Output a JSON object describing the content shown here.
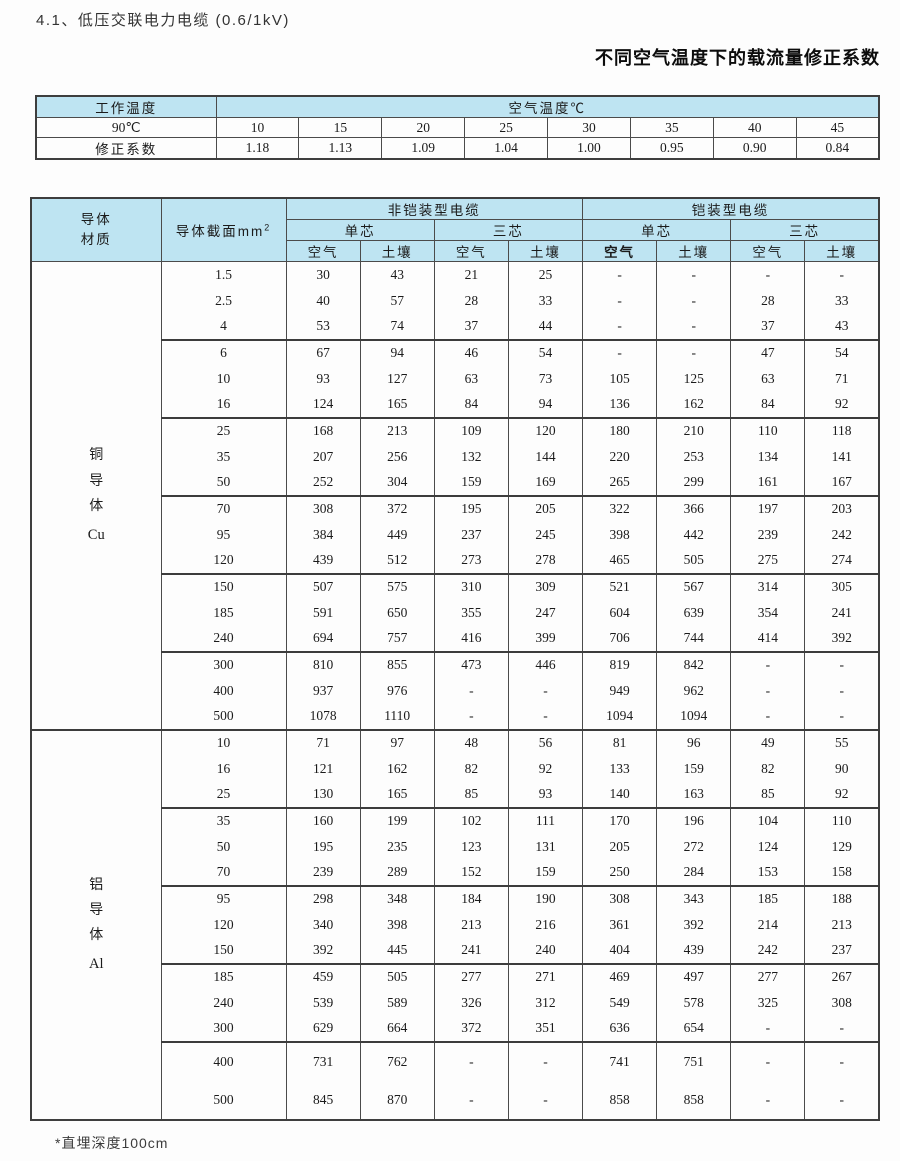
{
  "page": {
    "title": "4.1、低压交联电力电缆 (0.6/1kV)",
    "subtitle": "不同空气温度下的载流量修正系数",
    "footnote": "*直埋深度100cm"
  },
  "correction_table": {
    "col1_header": "工作温度",
    "span_header": "空气温度℃",
    "row1_label": "90℃",
    "temps": [
      "10",
      "15",
      "20",
      "25",
      "30",
      "35",
      "40",
      "45"
    ],
    "row2_label": "修正系数",
    "factors": [
      "1.18",
      "1.13",
      "1.09",
      "1.04",
      "1.00",
      "0.95",
      "0.90",
      "0.84"
    ]
  },
  "main_table": {
    "headers": {
      "material_line1": "导体",
      "material_line2": "材质",
      "cross_section": "导体截面mm",
      "cross_section_sup": "2",
      "non_armored": "非铠装型电缆",
      "armored": "铠装型电缆",
      "single_core": "单芯",
      "three_core": "三芯",
      "air": "空气",
      "soil": "土壤"
    },
    "sections": [
      {
        "material_lines": [
          "铜",
          "导",
          "体",
          "Cu"
        ],
        "groups": [
          {
            "sizes": [
              "1.5",
              "2.5",
              "4"
            ],
            "rows": [
              [
                "30",
                "43",
                "21",
                "25",
                "-",
                "-",
                "-",
                "-"
              ],
              [
                "40",
                "57",
                "28",
                "33",
                "-",
                "-",
                "28",
                "33"
              ],
              [
                "53",
                "74",
                "37",
                "44",
                "-",
                "-",
                "37",
                "43"
              ]
            ]
          },
          {
            "sizes": [
              "6",
              "10",
              "16"
            ],
            "rows": [
              [
                "67",
                "94",
                "46",
                "54",
                "-",
                "-",
                "47",
                "54"
              ],
              [
                "93",
                "127",
                "63",
                "73",
                "105",
                "125",
                "63",
                "71"
              ],
              [
                "124",
                "165",
                "84",
                "94",
                "136",
                "162",
                "84",
                "92"
              ]
            ]
          },
          {
            "sizes": [
              "25",
              "35",
              "50"
            ],
            "rows": [
              [
                "168",
                "213",
                "109",
                "120",
                "180",
                "210",
                "110",
                "118"
              ],
              [
                "207",
                "256",
                "132",
                "144",
                "220",
                "253",
                "134",
                "141"
              ],
              [
                "252",
                "304",
                "159",
                "169",
                "265",
                "299",
                "161",
                "167"
              ]
            ]
          },
          {
            "sizes": [
              "70",
              "95",
              "120"
            ],
            "rows": [
              [
                "308",
                "372",
                "195",
                "205",
                "322",
                "366",
                "197",
                "203"
              ],
              [
                "384",
                "449",
                "237",
                "245",
                "398",
                "442",
                "239",
                "242"
              ],
              [
                "439",
                "512",
                "273",
                "278",
                "465",
                "505",
                "275",
                "274"
              ]
            ]
          },
          {
            "sizes": [
              "150",
              "185",
              "240"
            ],
            "rows": [
              [
                "507",
                "575",
                "310",
                "309",
                "521",
                "567",
                "314",
                "305"
              ],
              [
                "591",
                "650",
                "355",
                "247",
                "604",
                "639",
                "354",
                "241"
              ],
              [
                "694",
                "757",
                "416",
                "399",
                "706",
                "744",
                "414",
                "392"
              ]
            ]
          },
          {
            "sizes": [
              "300",
              "400",
              "500"
            ],
            "rows": [
              [
                "810",
                "855",
                "473",
                "446",
                "819",
                "842",
                "-",
                "-"
              ],
              [
                "937",
                "976",
                "-",
                "-",
                "949",
                "962",
                "-",
                "-"
              ],
              [
                "1078",
                "1110",
                "-",
                "-",
                "1094",
                "1094",
                "-",
                "-"
              ]
            ]
          }
        ]
      },
      {
        "material_lines": [
          "铝",
          "导",
          "体",
          "Al"
        ],
        "groups": [
          {
            "sizes": [
              "10",
              "16",
              "25"
            ],
            "rows": [
              [
                "71",
                "97",
                "48",
                "56",
                "81",
                "96",
                "49",
                "55"
              ],
              [
                "121",
                "162",
                "82",
                "92",
                "133",
                "159",
                "82",
                "90"
              ],
              [
                "130",
                "165",
                "85",
                "93",
                "140",
                "163",
                "85",
                "92"
              ]
            ]
          },
          {
            "sizes": [
              "35",
              "50",
              "70"
            ],
            "rows": [
              [
                "160",
                "199",
                "102",
                "111",
                "170",
                "196",
                "104",
                "110"
              ],
              [
                "195",
                "235",
                "123",
                "131",
                "205",
                "272",
                "124",
                "129"
              ],
              [
                "239",
                "289",
                "152",
                "159",
                "250",
                "284",
                "153",
                "158"
              ]
            ]
          },
          {
            "sizes": [
              "95",
              "120",
              "150"
            ],
            "rows": [
              [
                "298",
                "348",
                "184",
                "190",
                "308",
                "343",
                "185",
                "188"
              ],
              [
                "340",
                "398",
                "213",
                "216",
                "361",
                "392",
                "214",
                "213"
              ],
              [
                "392",
                "445",
                "241",
                "240",
                "404",
                "439",
                "242",
                "237"
              ]
            ]
          },
          {
            "sizes": [
              "185",
              "240",
              "300"
            ],
            "rows": [
              [
                "459",
                "505",
                "277",
                "271",
                "469",
                "497",
                "277",
                "267"
              ],
              [
                "539",
                "589",
                "326",
                "312",
                "549",
                "578",
                "325",
                "308"
              ],
              [
                "629",
                "664",
                "372",
                "351",
                "636",
                "654",
                "-",
                "-"
              ]
            ]
          },
          {
            "sizes": [
              "400",
              "500"
            ],
            "rows": [
              [
                "731",
                "762",
                "-",
                "-",
                "741",
                "751",
                "-",
                "-"
              ],
              [
                "845",
                "870",
                "-",
                "-",
                "858",
                "858",
                "-",
                "-"
              ]
            ]
          }
        ]
      }
    ]
  }
}
